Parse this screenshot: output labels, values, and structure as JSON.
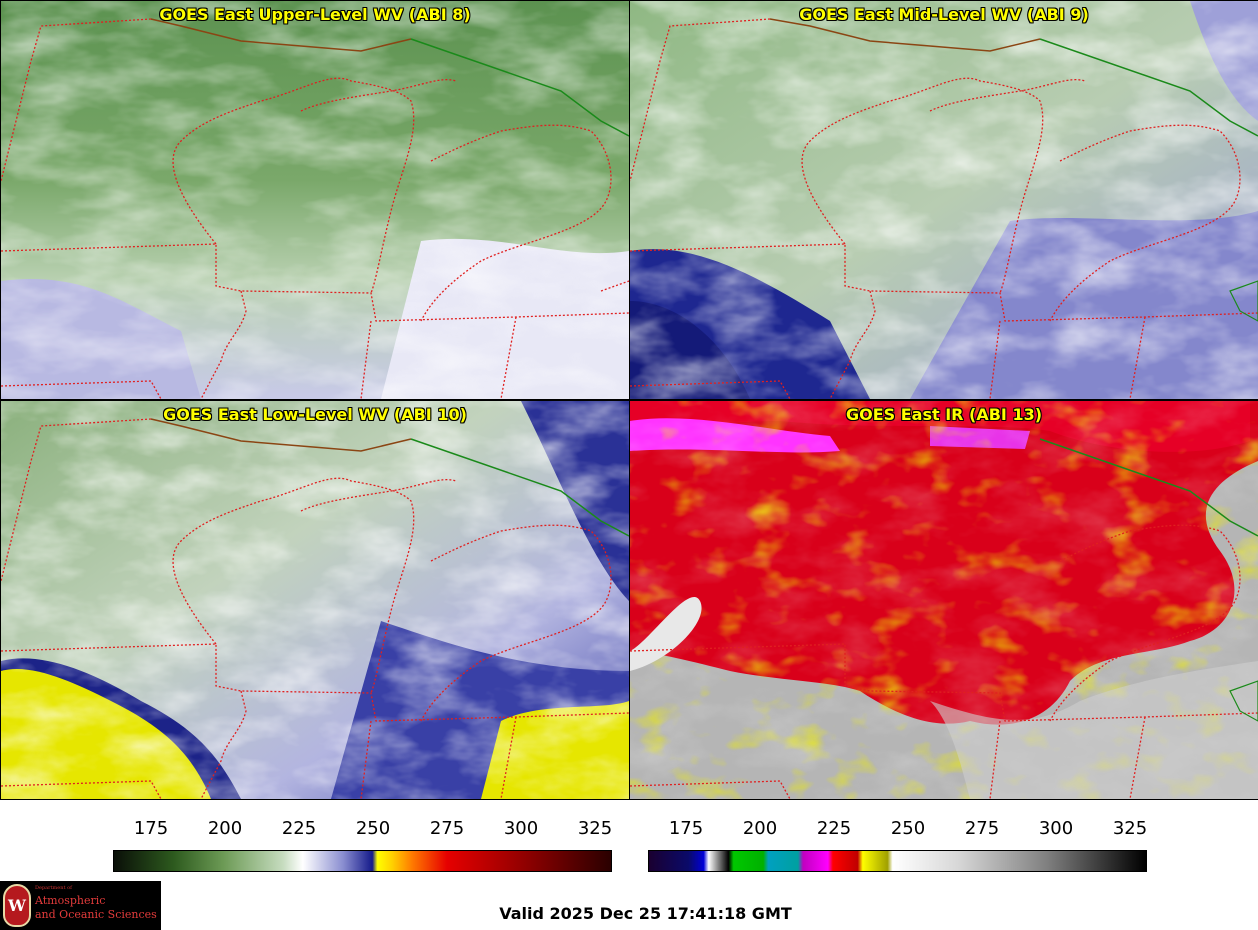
{
  "panels": [
    {
      "title": "GOES East Upper-Level WV (ABI 8)"
    },
    {
      "title": "GOES East Mid-Level WV (ABI 9)"
    },
    {
      "title": "GOES East Low-Level WV (ABI 10)"
    },
    {
      "title": "GOES East IR (ABI 13)"
    }
  ],
  "colorbars": [
    {
      "ticks": [
        "175",
        "200",
        "225",
        "250",
        "275",
        "300",
        "325"
      ]
    },
    {
      "ticks": [
        "175",
        "200",
        "225",
        "250",
        "275",
        "300",
        "325"
      ]
    }
  ],
  "logo": {
    "dept": "Department of",
    "line1": "Atmospheric",
    "line2": "and Oceanic Sciences"
  },
  "valid_time": "Valid 2025 Dec 25 17:41:18 GMT",
  "colors": {
    "title_text": "#ffff00",
    "state_border": "#e02020",
    "country_border": "#1a8a1a",
    "coast": "#8b4513"
  }
}
